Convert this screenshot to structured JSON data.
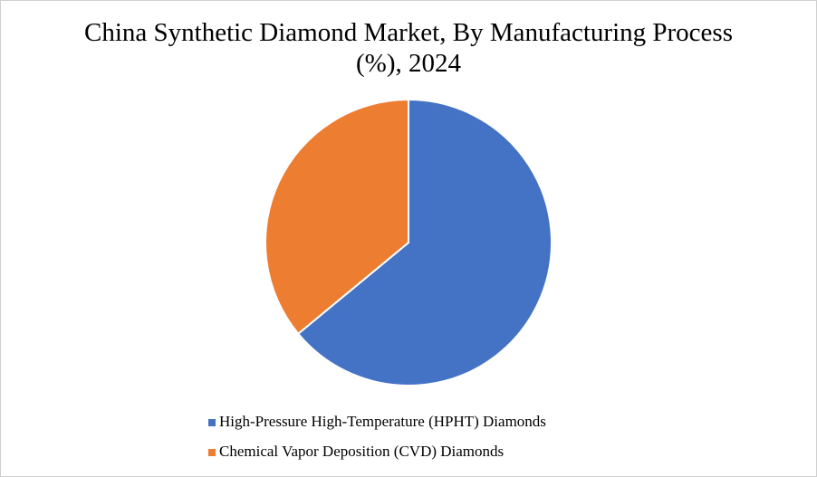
{
  "chart_data": {
    "type": "pie",
    "title": "China Synthetic Diamond Market, By Manufacturing Process (%), 2024",
    "categories": [
      "High-Pressure High-Temperature (HPHT) Diamonds",
      "Chemical Vapor Deposition (CVD) Diamonds"
    ],
    "values": [
      64,
      36
    ],
    "colors": [
      "#4472c4",
      "#ed7d31"
    ]
  }
}
